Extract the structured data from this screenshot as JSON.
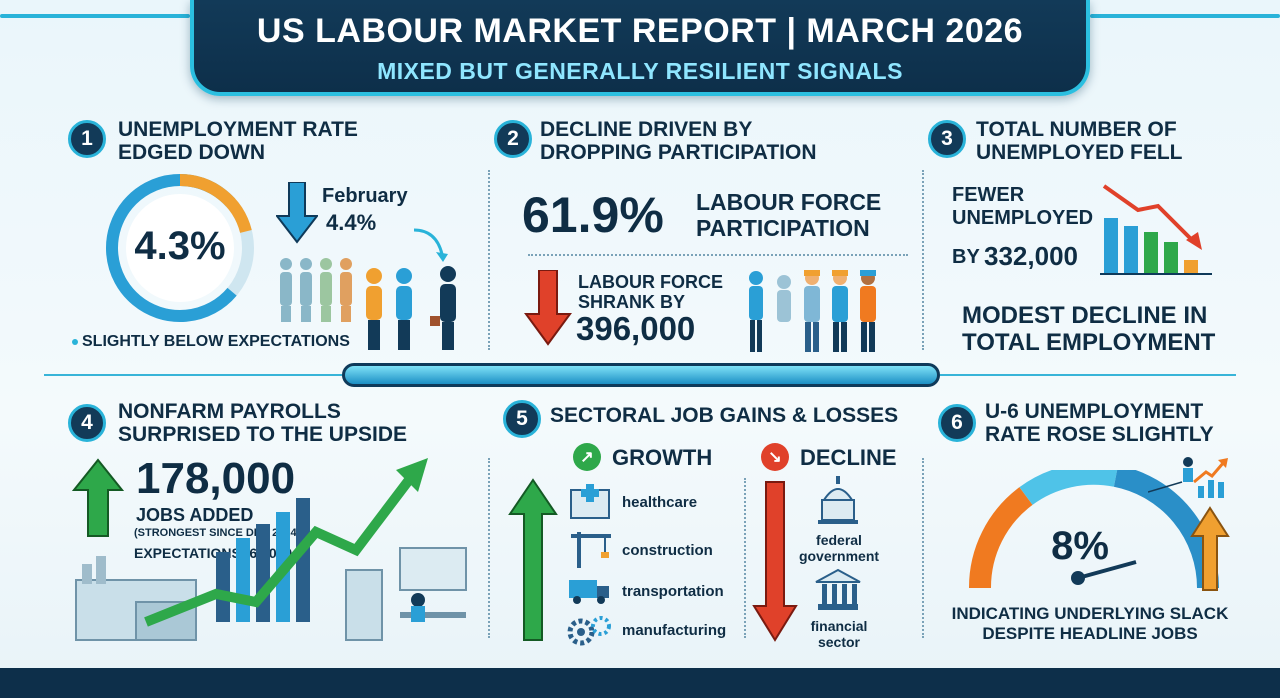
{
  "header": {
    "title": "US LABOUR MARKET REPORT | MARCH 2026",
    "subtitle": "MIXED BUT GENERALLY RESILIENT SIGNALS"
  },
  "colors": {
    "navy": "#0f2d44",
    "cyan": "#29b3d9",
    "green": "#2ea84a",
    "red": "#e0412a",
    "orange": "#f0a030"
  },
  "sections": {
    "s1": {
      "number": "1",
      "title_line1": "UNEMPLOYMENT RATE",
      "title_line2": "EDGED DOWN",
      "rate": "4.3%",
      "prev_label": "February",
      "prev_value": "4.4%",
      "note": "SLIGHTLY BELOW EXPECTATIONS"
    },
    "s2": {
      "number": "2",
      "title_line1": "DECLINE DRIVEN BY",
      "title_line2": "DROPPING PARTICIPATION",
      "participation": "61.9%",
      "participation_label_line1": "LABOUR FORCE",
      "participation_label_line2": "PARTICIPATION",
      "shrank_line1": "LABOUR FORCE",
      "shrank_line2": "SHRANK BY",
      "shrank_value": "396,000"
    },
    "s3": {
      "number": "3",
      "title_line1": "TOTAL NUMBER OF",
      "title_line2": "UNEMPLOYED FELL",
      "fewer_line1": "FEWER",
      "fewer_line2": "UNEMPLOYED",
      "by_label": "BY",
      "by_value": "332,000",
      "modest_line1": "MODEST DECLINE IN",
      "modest_line2": "TOTAL EMPLOYMENT"
    },
    "s4": {
      "number": "4",
      "title_line1": "NONFARM PAYROLLS",
      "title_line2": "SURPRISED TO THE UPSIDE",
      "jobs": "178,000",
      "jobs_label": "JOBS ADDED",
      "strongest": "(STRONGEST SINCE DEC 2024)",
      "expectations": "EXPECTATIONS: 60,000"
    },
    "s5": {
      "number": "5",
      "title": "SECTORAL JOB GAINS & LOSSES",
      "growth_label": "GROWTH",
      "decline_label": "DECLINE",
      "growth_items": [
        "healthcare",
        "construction",
        "transportation",
        "manufacturing"
      ],
      "decline_item1_line1": "federal",
      "decline_item1_line2": "government",
      "decline_item2_line1": "financial",
      "decline_item2_line2": "sector"
    },
    "s6": {
      "number": "6",
      "title_line1": "U-6 UNEMPLOYMENT",
      "title_line2": "RATE ROSE SLIGHTLY",
      "rate": "8%",
      "note_line1": "INDICATING UNDERLYING SLACK",
      "note_line2": "DESPITE HEADLINE JOBS"
    }
  }
}
